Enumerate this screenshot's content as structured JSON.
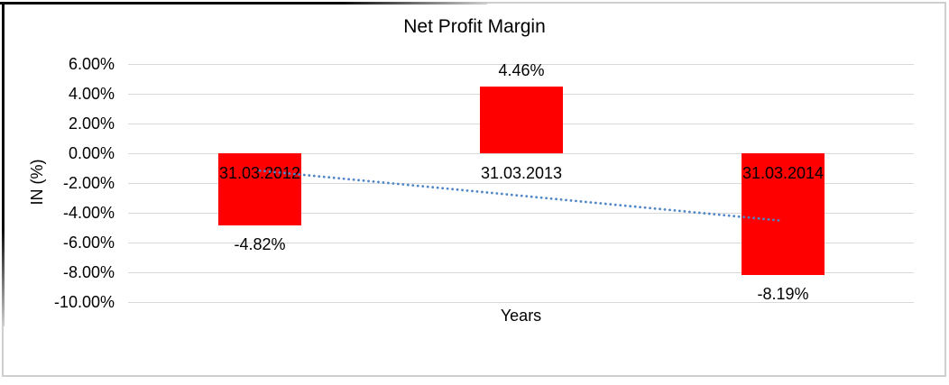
{
  "chart_data": {
    "type": "bar",
    "title": "Net Profit Margin",
    "xlabel": "Years",
    "ylabel": "IN (%)",
    "categories": [
      "31.03.2012",
      "31.03.2013",
      "31.03.2014"
    ],
    "values": [
      -4.82,
      4.46,
      -8.19
    ],
    "data_labels": [
      "-4.82%",
      "4.46%",
      "-8.19%"
    ],
    "ylim": [
      -10,
      6
    ],
    "ytick_step": 2,
    "ytick_labels": [
      "6.00%",
      "4.00%",
      "2.00%",
      "0.00%",
      "-2.00%",
      "-4.00%",
      "-6.00%",
      "-8.00%",
      "-10.00%"
    ],
    "grid": true,
    "legend": "none",
    "trendline": {
      "type": "linear",
      "style": "dotted",
      "start_value": -1.17,
      "end_value": -4.54
    },
    "colors": {
      "bar": "#FE0000",
      "trendline": "#4E86C8",
      "gridline": "#D9D9D9",
      "text": "#000000"
    }
  }
}
